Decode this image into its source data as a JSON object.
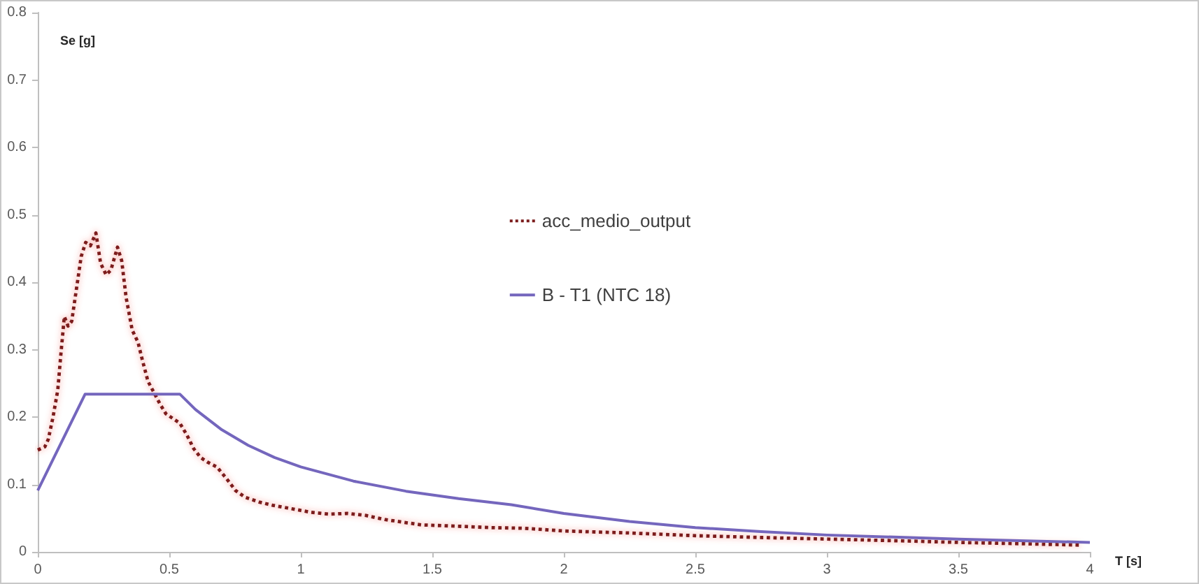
{
  "chart_data": {
    "type": "line",
    "xlabel": "T [s]",
    "ylabel": "Se [g]",
    "xlim": [
      0,
      4
    ],
    "ylim": [
      0,
      0.8
    ],
    "xticks": [
      0,
      0.5,
      1,
      1.5,
      2,
      2.5,
      3,
      3.5,
      4
    ],
    "yticks": [
      0,
      0.1,
      0.2,
      0.3,
      0.4,
      0.5,
      0.6,
      0.7,
      0.8
    ],
    "grid": false,
    "legend": "center",
    "marker": "none",
    "series": [
      {
        "name": "acc_medio_output",
        "color": "#7b1c1c",
        "line_style": "dotted",
        "x": [
          0,
          0.027,
          0.04,
          0.058,
          0.076,
          0.088,
          0.101,
          0.115,
          0.129,
          0.147,
          0.165,
          0.182,
          0.2,
          0.221,
          0.239,
          0.26,
          0.278,
          0.303,
          0.319,
          0.336,
          0.359,
          0.381,
          0.398,
          0.419,
          0.442,
          0.465,
          0.487,
          0.513,
          0.54,
          0.566,
          0.593,
          0.619,
          0.646,
          0.681,
          0.717,
          0.752,
          0.788,
          0.841,
          0.894,
          0.965,
          1.035,
          1.106,
          1.177,
          1.248,
          1.319,
          1.389,
          1.46,
          1.6,
          1.72,
          1.85,
          2.0,
          2.25,
          2.5,
          2.78,
          3.0,
          3.32,
          3.5,
          3.75,
          3.97
        ],
        "values": [
          0.151,
          0.156,
          0.167,
          0.2,
          0.24,
          0.294,
          0.349,
          0.335,
          0.342,
          0.39,
          0.438,
          0.459,
          0.454,
          0.473,
          0.428,
          0.411,
          0.418,
          0.452,
          0.432,
          0.377,
          0.329,
          0.311,
          0.284,
          0.253,
          0.236,
          0.219,
          0.205,
          0.198,
          0.191,
          0.174,
          0.153,
          0.14,
          0.133,
          0.126,
          0.109,
          0.091,
          0.081,
          0.074,
          0.069,
          0.064,
          0.059,
          0.056,
          0.057,
          0.054,
          0.048,
          0.044,
          0.04,
          0.038,
          0.036,
          0.035,
          0.031,
          0.028,
          0.024,
          0.021,
          0.019,
          0.016,
          0.014,
          0.012,
          0.01
        ]
      },
      {
        "name": "B - T1 (NTC 18)",
        "color": "#7466bd",
        "line_style": "solid",
        "x": [
          0,
          0.18,
          0.54,
          0.6,
          0.7,
          0.8,
          0.9,
          1.0,
          1.2,
          1.4,
          1.6,
          1.8,
          2.0,
          2.25,
          2.5,
          2.75,
          3.0,
          3.5,
          4.0
        ],
        "values": [
          0.091,
          0.234,
          0.234,
          0.211,
          0.181,
          0.158,
          0.14,
          0.126,
          0.105,
          0.09,
          0.079,
          0.07,
          0.057,
          0.045,
          0.036,
          0.03,
          0.025,
          0.019,
          0.014
        ]
      }
    ]
  }
}
